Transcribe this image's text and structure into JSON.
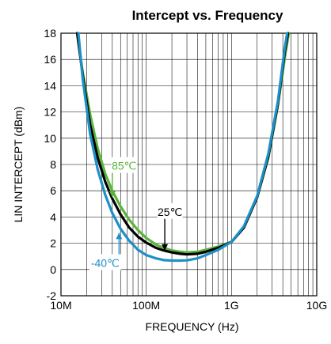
{
  "chart_data": {
    "type": "line",
    "title": "Intercept vs. Frequency",
    "xlabel": "FREQUENCY (Hz)",
    "ylabel": "LIN INTERCEPT (dBm)",
    "x_scale": "log",
    "xlim": [
      10000000,
      10000000000
    ],
    "ylim": [
      -2,
      18
    ],
    "x_ticks": [
      {
        "value": 10000000,
        "label": "10M"
      },
      {
        "value": 100000000,
        "label": "100M"
      },
      {
        "value": 1000000000,
        "label": "1G"
      },
      {
        "value": 10000000000,
        "label": "10G"
      }
    ],
    "y_ticks": [
      {
        "value": -2,
        "label": "-2"
      },
      {
        "value": 0,
        "label": "0"
      },
      {
        "value": 2,
        "label": "2"
      },
      {
        "value": 4,
        "label": "4"
      },
      {
        "value": 6,
        "label": "6"
      },
      {
        "value": 8,
        "label": "8"
      },
      {
        "value": 10,
        "label": "10"
      },
      {
        "value": 12,
        "label": "12"
      },
      {
        "value": 14,
        "label": "14"
      },
      {
        "value": 16,
        "label": "16"
      },
      {
        "value": 18,
        "label": "18"
      }
    ],
    "grid": true,
    "series": [
      {
        "name": "85℃",
        "color": "#5bb43c",
        "points": [
          [
            15500000,
            18
          ],
          [
            18000000,
            15
          ],
          [
            22000000,
            11.8
          ],
          [
            27000000,
            9.2
          ],
          [
            33000000,
            7.3
          ],
          [
            40000000,
            6.0
          ],
          [
            50000000,
            4.8
          ],
          [
            63000000,
            3.8
          ],
          [
            80000000,
            3.0
          ],
          [
            100000000,
            2.4
          ],
          [
            130000000,
            1.9
          ],
          [
            160000000,
            1.65
          ],
          [
            200000000,
            1.45
          ],
          [
            250000000,
            1.35
          ],
          [
            300000000,
            1.3
          ],
          [
            400000000,
            1.35
          ],
          [
            500000000,
            1.5
          ],
          [
            700000000,
            1.75
          ],
          [
            1000000000,
            2.1
          ],
          [
            1400000000,
            3.2
          ],
          [
            2000000000,
            5.5
          ],
          [
            2700000000,
            8.5
          ],
          [
            3500000000,
            12.5
          ],
          [
            4300000000,
            16.5
          ],
          [
            4700000000,
            18
          ]
        ]
      },
      {
        "name": "25℃",
        "color": "#000000",
        "points": [
          [
            15500000,
            18
          ],
          [
            18000000,
            14.8
          ],
          [
            22000000,
            11.0
          ],
          [
            27000000,
            8.5
          ],
          [
            33000000,
            6.7
          ],
          [
            40000000,
            5.4
          ],
          [
            50000000,
            4.2
          ],
          [
            63000000,
            3.2
          ],
          [
            80000000,
            2.5
          ],
          [
            100000000,
            2.05
          ],
          [
            130000000,
            1.65
          ],
          [
            160000000,
            1.45
          ],
          [
            200000000,
            1.3
          ],
          [
            250000000,
            1.2
          ],
          [
            300000000,
            1.15
          ],
          [
            400000000,
            1.2
          ],
          [
            500000000,
            1.35
          ],
          [
            700000000,
            1.65
          ],
          [
            1000000000,
            2.1
          ],
          [
            1400000000,
            3.2
          ],
          [
            2000000000,
            5.5
          ],
          [
            2700000000,
            8.6
          ],
          [
            3500000000,
            12.6
          ],
          [
            4200000000,
            16.5
          ],
          [
            4600000000,
            18
          ]
        ]
      },
      {
        "name": "-40℃",
        "color": "#1f8fc7",
        "points": [
          [
            16000000,
            18
          ],
          [
            18000000,
            14.5
          ],
          [
            22000000,
            10.3
          ],
          [
            27000000,
            7.6
          ],
          [
            33000000,
            5.7
          ],
          [
            40000000,
            4.3
          ],
          [
            50000000,
            3.1
          ],
          [
            63000000,
            2.2
          ],
          [
            80000000,
            1.5
          ],
          [
            100000000,
            1.1
          ],
          [
            130000000,
            0.85
          ],
          [
            160000000,
            0.72
          ],
          [
            200000000,
            0.68
          ],
          [
            250000000,
            0.68
          ],
          [
            300000000,
            0.7
          ],
          [
            400000000,
            0.85
          ],
          [
            500000000,
            1.1
          ],
          [
            700000000,
            1.5
          ],
          [
            1000000000,
            2.1
          ],
          [
            1400000000,
            3.3
          ],
          [
            2000000000,
            5.6
          ],
          [
            2700000000,
            8.8
          ],
          [
            3500000000,
            12.8
          ],
          [
            4200000000,
            16.8
          ],
          [
            4500000000,
            18
          ]
        ]
      }
    ],
    "annotations": [
      {
        "text": "85℃",
        "color": "#5bb43c",
        "x": 55000000,
        "y": 7.9,
        "arrow_to": [
          40000000,
          5.5
        ]
      },
      {
        "text": "25℃",
        "color": "#000000",
        "x": 190000000,
        "y": 4.4,
        "arrow_to": [
          165000000,
          1.45
        ]
      },
      {
        "text": "-40℃",
        "color": "#1f8fc7",
        "x": 33000000,
        "y": 0.5,
        "arrow_to": [
          48000000,
          2.8
        ]
      }
    ]
  }
}
